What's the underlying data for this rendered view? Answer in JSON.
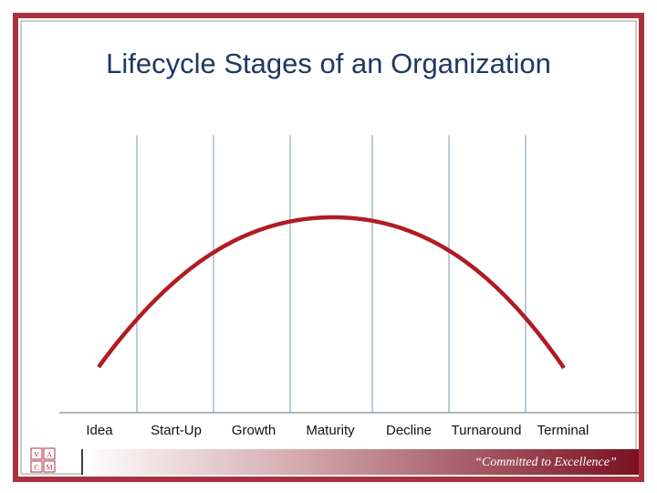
{
  "header": {
    "title": "Lifecycle Stages of an Organization"
  },
  "stages": [
    "Idea",
    "Start-Up",
    "Growth",
    "Maturity",
    "Decline",
    "Turnaround",
    "Terminal"
  ],
  "footer": {
    "tagline": "“Committed to Excellence”",
    "logo": [
      "V",
      "A",
      "C",
      "M"
    ]
  }
}
